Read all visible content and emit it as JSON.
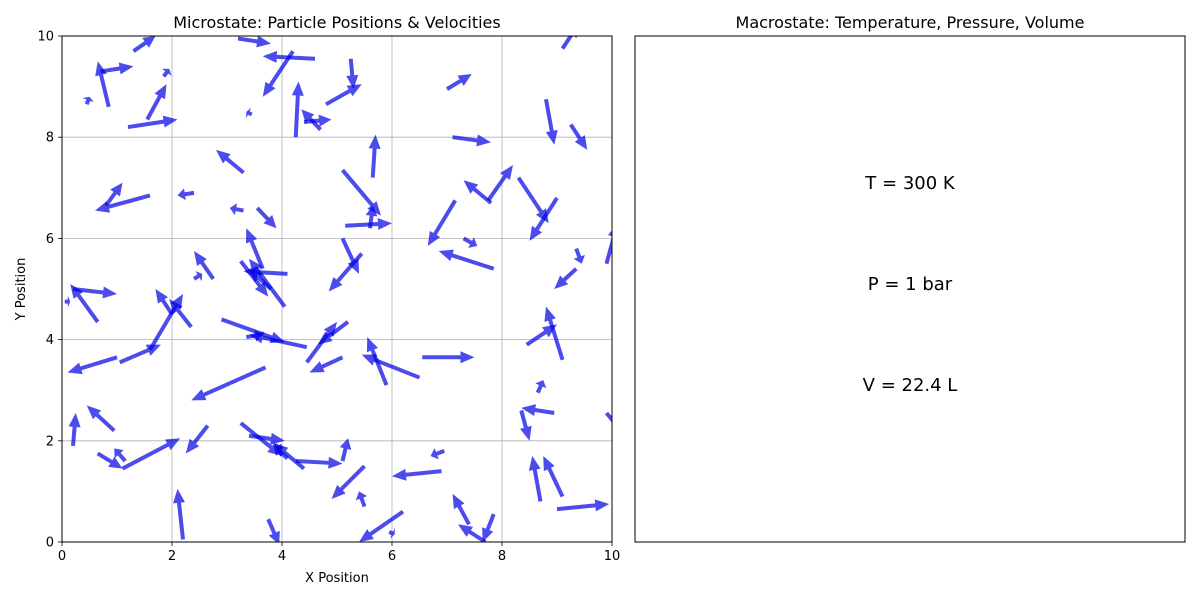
{
  "chart_data": [
    {
      "type": "quiver",
      "title": "Microstate: Particle Positions & Velocities",
      "xlabel": "X Position",
      "ylabel": "Y Position",
      "xlim": [
        0,
        10
      ],
      "ylim": [
        0,
        10
      ],
      "xticks": [
        0,
        2,
        4,
        6,
        8,
        10
      ],
      "yticks": [
        0,
        2,
        4,
        6,
        8,
        10
      ],
      "grid": true,
      "arrow_color": "#0000e6",
      "arrows": [
        [
          1.3,
          9.7,
          0.4,
          0.3
        ],
        [
          3.2,
          9.95,
          0.6,
          -0.1
        ],
        [
          0.7,
          9.3,
          0.6,
          0.1
        ],
        [
          0.85,
          8.6,
          -0.2,
          0.9
        ],
        [
          1.85,
          9.2,
          0.1,
          0.15
        ],
        [
          0.45,
          8.65,
          0.05,
          0.15
        ],
        [
          1.2,
          8.2,
          0.9,
          0.15
        ],
        [
          1.55,
          8.35,
          0.35,
          0.7
        ],
        [
          3.45,
          8.45,
          -0.1,
          0.05
        ],
        [
          4.2,
          9.7,
          -0.55,
          -0.9
        ],
        [
          4.6,
          9.55,
          -0.95,
          0.05
        ],
        [
          5.25,
          9.55,
          0.05,
          -0.6
        ],
        [
          4.25,
          8.0,
          0.05,
          1.1
        ],
        [
          4.7,
          8.15,
          -0.35,
          0.4
        ],
        [
          4.4,
          8.3,
          0.5,
          0.05
        ],
        [
          4.8,
          8.65,
          0.65,
          0.4
        ],
        [
          7.0,
          8.95,
          0.45,
          0.3
        ],
        [
          7.1,
          8.0,
          0.7,
          -0.1
        ],
        [
          8.8,
          8.75,
          0.15,
          -0.9
        ],
        [
          9.25,
          8.25,
          0.3,
          -0.5
        ],
        [
          9.1,
          9.75,
          0.3,
          0.5
        ],
        [
          3.3,
          7.3,
          -0.5,
          0.45
        ],
        [
          1.6,
          6.85,
          -1.0,
          -0.3
        ],
        [
          0.8,
          6.65,
          0.3,
          0.45
        ],
        [
          2.4,
          6.9,
          -0.3,
          -0.05
        ],
        [
          3.3,
          6.55,
          -0.25,
          0.05
        ],
        [
          3.55,
          6.6,
          0.35,
          -0.4
        ],
        [
          5.1,
          7.35,
          0.7,
          -0.9
        ],
        [
          5.65,
          7.2,
          0.05,
          0.85
        ],
        [
          5.15,
          6.25,
          0.85,
          0.05
        ],
        [
          5.6,
          6.2,
          0.05,
          0.45
        ],
        [
          7.15,
          6.75,
          -0.5,
          -0.9
        ],
        [
          7.8,
          6.7,
          -0.5,
          0.45
        ],
        [
          7.75,
          6.75,
          0.45,
          0.7
        ],
        [
          8.3,
          7.2,
          0.55,
          -0.9
        ],
        [
          9.0,
          6.8,
          -0.5,
          -0.85
        ],
        [
          7.85,
          5.4,
          -1.0,
          0.35
        ],
        [
          7.3,
          6.0,
          0.25,
          -0.15
        ],
        [
          9.35,
          5.4,
          -0.4,
          -0.4
        ],
        [
          9.35,
          5.8,
          0.1,
          -0.3
        ],
        [
          9.9,
          5.5,
          0.2,
          0.8
        ],
        [
          0.05,
          4.75,
          0.1,
          0.0
        ],
        [
          0.65,
          4.35,
          -0.5,
          0.75
        ],
        [
          0.2,
          5.0,
          0.8,
          -0.1
        ],
        [
          1.6,
          3.8,
          0.6,
          1.1
        ],
        [
          2.0,
          4.5,
          -0.3,
          0.5
        ],
        [
          2.35,
          4.25,
          -0.4,
          0.55
        ],
        [
          2.4,
          5.2,
          0.15,
          0.1
        ],
        [
          2.75,
          5.2,
          -0.35,
          0.55
        ],
        [
          3.25,
          5.55,
          0.5,
          -0.7
        ],
        [
          3.65,
          5.4,
          -0.3,
          0.8
        ],
        [
          3.8,
          5.0,
          -0.4,
          0.4
        ],
        [
          4.1,
          5.3,
          -0.8,
          0.05
        ],
        [
          4.05,
          4.65,
          -0.65,
          0.95
        ],
        [
          2.9,
          4.4,
          1.15,
          -0.45
        ],
        [
          3.35,
          4.05,
          0.3,
          0.05
        ],
        [
          4.45,
          3.85,
          -1.05,
          0.25
        ],
        [
          4.45,
          3.55,
          0.55,
          0.8
        ],
        [
          5.2,
          4.35,
          -0.55,
          -0.45
        ],
        [
          5.45,
          5.7,
          -0.6,
          -0.75
        ],
        [
          5.1,
          6.0,
          0.3,
          -0.7
        ],
        [
          6.5,
          3.25,
          -1.05,
          0.45
        ],
        [
          5.9,
          3.1,
          -0.35,
          0.95
        ],
        [
          6.55,
          3.65,
          0.95,
          0.0
        ],
        [
          1.0,
          3.65,
          -0.9,
          -0.3
        ],
        [
          1.05,
          3.55,
          0.75,
          0.35
        ],
        [
          3.7,
          3.45,
          -1.35,
          -0.65
        ],
        [
          8.45,
          3.9,
          0.55,
          0.4
        ],
        [
          9.1,
          3.6,
          -0.3,
          1.05
        ],
        [
          5.1,
          3.65,
          -0.6,
          -0.3
        ],
        [
          8.65,
          2.95,
          0.1,
          0.25
        ],
        [
          8.95,
          2.55,
          -0.6,
          0.1
        ],
        [
          8.35,
          2.6,
          0.15,
          -0.6
        ],
        [
          9.9,
          2.55,
          0.3,
          -0.4
        ],
        [
          0.2,
          1.9,
          0.05,
          0.65
        ],
        [
          0.95,
          2.2,
          -0.5,
          0.5
        ],
        [
          0.65,
          1.75,
          0.45,
          -0.3
        ],
        [
          1.15,
          1.6,
          -0.2,
          0.25
        ],
        [
          1.1,
          1.45,
          1.05,
          0.6
        ],
        [
          2.2,
          0.05,
          -0.1,
          1.0
        ],
        [
          2.65,
          2.3,
          -0.4,
          -0.55
        ],
        [
          3.25,
          2.35,
          0.75,
          -0.65
        ],
        [
          3.4,
          2.1,
          0.65,
          -0.1
        ],
        [
          4.0,
          1.9,
          -0.1,
          -0.05
        ],
        [
          4.1,
          1.65,
          -0.25,
          0.25
        ],
        [
          4.4,
          1.45,
          -0.55,
          0.5
        ],
        [
          4.25,
          1.6,
          0.85,
          -0.05
        ],
        [
          5.1,
          1.6,
          0.1,
          0.45
        ],
        [
          5.5,
          1.5,
          -0.6,
          -0.65
        ],
        [
          5.5,
          0.7,
          -0.1,
          0.3
        ],
        [
          6.2,
          0.6,
          -0.8,
          -0.6
        ],
        [
          5.95,
          0.2,
          0.1,
          -0.05
        ],
        [
          6.9,
          1.4,
          -0.9,
          -0.1
        ],
        [
          6.95,
          1.8,
          -0.25,
          -0.1
        ],
        [
          7.4,
          0.35,
          -0.3,
          0.6
        ],
        [
          7.7,
          0.0,
          -0.5,
          0.35
        ],
        [
          7.85,
          0.55,
          -0.2,
          -0.55
        ],
        [
          8.7,
          0.8,
          -0.15,
          0.9
        ],
        [
          9.1,
          0.9,
          -0.35,
          0.8
        ],
        [
          9.0,
          0.65,
          0.95,
          0.1
        ],
        [
          3.75,
          0.45,
          0.2,
          -0.5
        ]
      ]
    },
    {
      "type": "text",
      "title": "Macrostate: Temperature, Pressure, Volume",
      "lines": [
        "T = 300 K",
        "P = 1 bar",
        "V = 22.4 L"
      ]
    }
  ]
}
